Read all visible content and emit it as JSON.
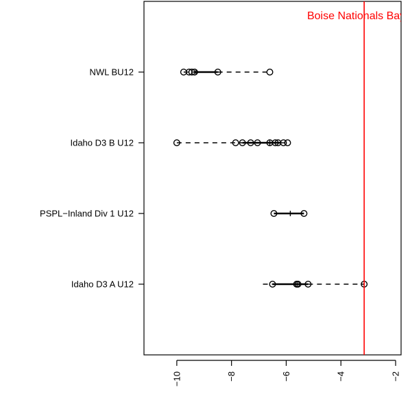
{
  "chart_data": {
    "type": "boxplot",
    "orientation": "horizontal",
    "xlim": [
      -11.2,
      -1.8
    ],
    "x_ticks": [
      {
        "value": -10,
        "label": "−10"
      },
      {
        "value": -8,
        "label": "−8"
      },
      {
        "value": -6,
        "label": "−6"
      },
      {
        "value": -4,
        "label": "−4"
      },
      {
        "value": -2,
        "label": "−2"
      }
    ],
    "categories": [
      {
        "label": "NWL BU12",
        "whisker_low": -9.75,
        "q1": -9.35,
        "median": -9.3,
        "q3": -8.5,
        "whisker_high": -6.6,
        "points": [
          -9.75,
          -9.55,
          -9.45,
          -9.35,
          -8.5,
          -6.6
        ]
      },
      {
        "label": "Idaho D3 B U12",
        "whisker_low": -10.0,
        "q1": -7.6,
        "median": -6.6,
        "q3": -6.2,
        "whisker_high": -5.95,
        "points": [
          -10.0,
          -7.85,
          -7.6,
          -7.3,
          -7.05,
          -6.6,
          -6.4,
          -6.3,
          -6.1,
          -5.95
        ]
      },
      {
        "label": "PSPL−Inland Div 1 U12",
        "whisker_low": -6.45,
        "q1": -6.45,
        "median": -5.85,
        "q3": -5.35,
        "whisker_high": -5.35,
        "points": [
          -6.45,
          -5.35
        ]
      },
      {
        "label": "Idaho D3 A U12",
        "whisker_low": -6.85,
        "q1": -6.5,
        "median": -5.6,
        "q3": -5.2,
        "whisker_high": -3.15,
        "points": [
          -6.5,
          -5.62,
          -5.57,
          -5.2,
          -3.15
        ]
      }
    ],
    "reference_line": {
      "value": -3.15,
      "label": "Boise Nationals Bayern",
      "color": "#ff0000"
    },
    "colors": {
      "points": "#000000",
      "reference": "#ff0000"
    }
  }
}
